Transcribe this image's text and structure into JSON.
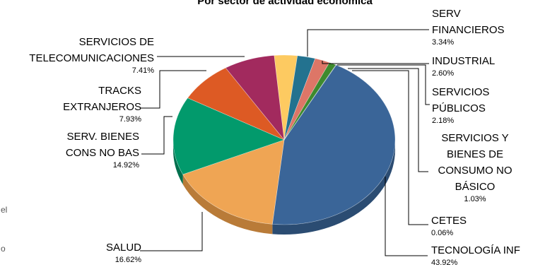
{
  "chart_data": {
    "type": "pie",
    "title": "Por sector de actividad económica",
    "slices": [
      {
        "name": "TECNOLOGÍA INF",
        "name_lines": [
          "TECNOLOGÍA INF"
        ],
        "value": 43.92,
        "label": "43.92%",
        "color": "#3A6598",
        "side": "#2B4C72"
      },
      {
        "name": "SALUD",
        "name_lines": [
          "SALUD"
        ],
        "value": 16.62,
        "label": "16.62%",
        "color": "#EFA554",
        "side": "#B97B38"
      },
      {
        "name": "SERV. BIENES CONS NO BAS",
        "name_lines": [
          "SERV. BIENES",
          "CONS NO BAS"
        ],
        "value": 14.92,
        "label": "14.92%",
        "color": "#029A6C",
        "side": "#01704E"
      },
      {
        "name": "TRACKS EXTRANJEROS",
        "name_lines": [
          "TRACKS",
          "EXTRANJEROS"
        ],
        "value": 7.93,
        "label": "7.93%",
        "color": "#DD5A24",
        "side": "#A8421A"
      },
      {
        "name": "SERVICIOS DE TELECOMUNICACIONES",
        "name_lines": [
          "SERVICIOS DE",
          "TELECOMUNICACIONES"
        ],
        "value": 7.41,
        "label": "7.41%",
        "color": "#A22A5E",
        "side": "#7A1F47"
      },
      {
        "name": "SERV FINANCIEROS",
        "name_lines": [
          "SERV",
          "FINANCIEROS"
        ],
        "value": 3.34,
        "label": "3.34%",
        "color": "#FDCA61",
        "side": "#C99D44"
      },
      {
        "name": "INDUSTRIAL",
        "name_lines": [
          "INDUSTRIAL"
        ],
        "value": 2.6,
        "label": "2.60%",
        "color": "#23728F",
        "side": "#1A566B"
      },
      {
        "name": "SERVICIOS PÚBLICOS",
        "name_lines": [
          "SERVICIOS",
          "PÚBLICOS"
        ],
        "value": 2.18,
        "label": "2.18%",
        "color": "#DD7667",
        "side": "#A7584C"
      },
      {
        "name": "SERVICIOS Y BIENES DE CONSUMO NO BÁSICO",
        "name_lines": [
          "SERVICIOS Y",
          "BIENES DE",
          "CONSUMO NO",
          "BÁSICO"
        ],
        "value": 1.03,
        "label": "1.03%",
        "color": "#3E8A2E",
        "side": "#2D6822"
      },
      {
        "name": "CETES",
        "name_lines": [
          "CETES"
        ],
        "value": 0.06,
        "label": "0.06%",
        "color": "#1F4F7A",
        "side": "#163A5A"
      }
    ]
  },
  "side_fragments": [
    "el",
    "o"
  ]
}
